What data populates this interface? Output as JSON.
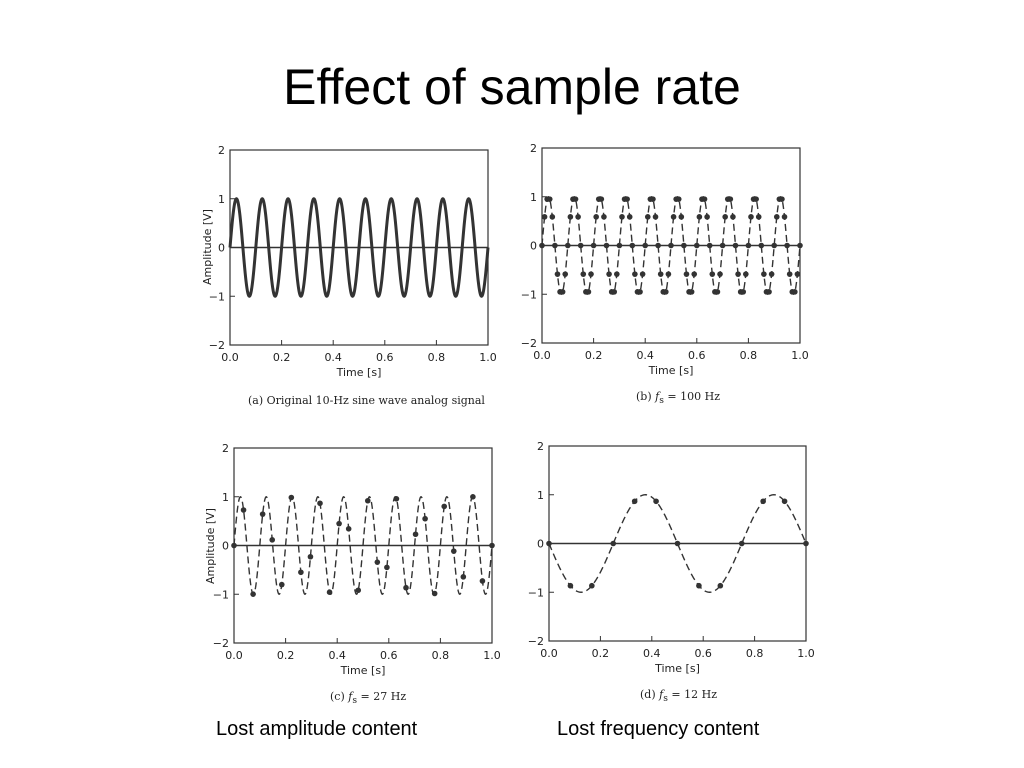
{
  "slide": {
    "title": "Effect of sample rate",
    "left_note": "Lost amplitude content",
    "right_note": "Lost frequency content"
  },
  "chart_data": [
    {
      "type": "line",
      "panel": "a",
      "caption": "(a) Original 10-Hz sine wave analog signal",
      "xlabel": "Time [s]",
      "ylabel": "Amplitude [V]",
      "xlim": [
        0,
        1
      ],
      "ylim": [
        -2,
        2
      ],
      "xticks": [
        "0.0",
        "0.2",
        "0.4",
        "0.6",
        "0.8",
        "1.0"
      ],
      "yticks": [
        "2",
        "1",
        "0",
        "−1",
        "−2"
      ],
      "signal_frequency_hz": 10,
      "amplitude": 1,
      "line_style": "solid",
      "samples": null
    },
    {
      "type": "scatter",
      "panel": "b",
      "caption": "(b) f_s = 100 Hz",
      "caption_parts": {
        "prefix": "(b) ",
        "var": "f",
        "sub": "s",
        "suffix": " = 100 Hz"
      },
      "xlabel": "Time [s]",
      "ylabel": "",
      "xlim": [
        0,
        1
      ],
      "ylim": [
        -2,
        2
      ],
      "xticks": [
        "0.0",
        "0.2",
        "0.4",
        "0.6",
        "0.8",
        "1.0"
      ],
      "yticks": [
        "2",
        "1",
        "0",
        "−1",
        "−2"
      ],
      "signal_frequency_hz": 10,
      "amplitude": 1,
      "sample_rate_hz": 100,
      "line_style": "dashed"
    },
    {
      "type": "scatter",
      "panel": "c",
      "caption": "(c) f_s = 27 Hz",
      "caption_parts": {
        "prefix": "(c) ",
        "var": "f",
        "sub": "s",
        "suffix": " = 27 Hz"
      },
      "xlabel": "Time [s]",
      "ylabel": "Amplitude [V]",
      "xlim": [
        0,
        1
      ],
      "ylim": [
        -2,
        2
      ],
      "xticks": [
        "0.0",
        "0.2",
        "0.4",
        "0.6",
        "0.8",
        "1.0"
      ],
      "yticks": [
        "2",
        "1",
        "0",
        "−1",
        "−2"
      ],
      "signal_frequency_hz": 10,
      "amplitude": 1,
      "sample_rate_hz": 27,
      "line_style": "dashed"
    },
    {
      "type": "scatter",
      "panel": "d",
      "caption": "(d) f_s = 12 Hz",
      "caption_parts": {
        "prefix": "(d) ",
        "var": "f",
        "sub": "s",
        "suffix": " = 12 Hz"
      },
      "xlabel": "Time [s]",
      "ylabel": "",
      "xlim": [
        0,
        1
      ],
      "ylim": [
        -2,
        2
      ],
      "xticks": [
        "0.0",
        "0.2",
        "0.4",
        "0.6",
        "0.8",
        "1.0"
      ],
      "yticks": [
        "2",
        "1",
        "0",
        "−1",
        "−2"
      ],
      "signal_frequency_hz": 10,
      "amplitude": 1,
      "sample_rate_hz": 12,
      "reconstructed_frequency_hz": 2,
      "reconstructed_sign": -1,
      "line_style": "dashed"
    }
  ]
}
